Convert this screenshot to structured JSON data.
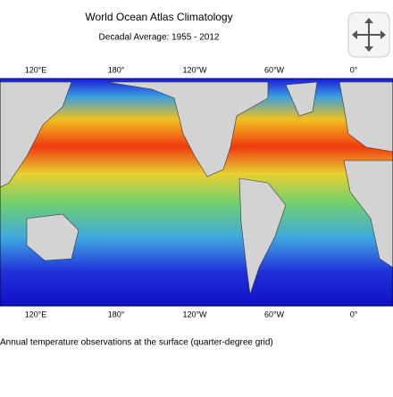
{
  "header": {
    "title": "World Ocean Atlas Climatology",
    "subtitle": "Decadal Average: 1955 - 2012"
  },
  "map": {
    "top_labels": [
      "120°E",
      "180°",
      "120°W",
      "60°W",
      "0°"
    ],
    "bottom_labels": [
      "120°E",
      "180°",
      "120°W",
      "60°W",
      "0°"
    ]
  },
  "caption": "Annual temperature  observations at the surface (quarter-degree grid)"
}
